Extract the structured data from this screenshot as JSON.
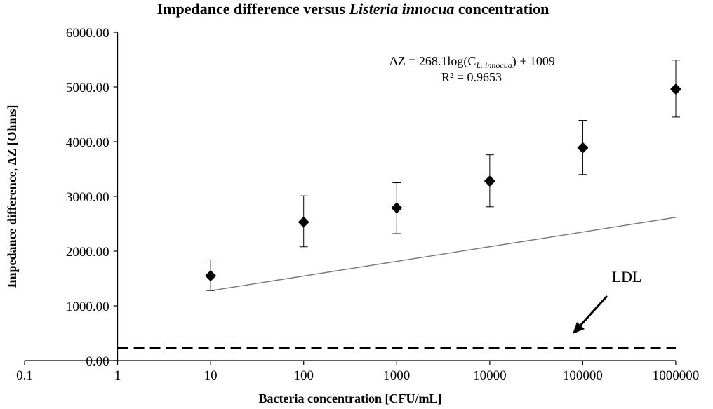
{
  "chart_data": {
    "type": "scatter",
    "title_parts": [
      "Impedance difference versus ",
      "Listeria innocua",
      " concentration"
    ],
    "xlabel": "Bacteria concentration [CFU/mL]",
    "ylabel": "Impedance difference, ΔZ [Ohms]",
    "x_scale": "log",
    "xlim": [
      0.1,
      1000000
    ],
    "ylim": [
      0,
      6000
    ],
    "x_ticks": [
      0.1,
      1,
      10,
      100,
      1000,
      10000,
      100000,
      1000000
    ],
    "x_tick_labels": [
      "0.1",
      "1",
      "10",
      "100",
      "1000",
      "10000",
      "100000",
      "1000000"
    ],
    "y_ticks": [
      0,
      1000,
      2000,
      3000,
      4000,
      5000,
      6000
    ],
    "y_tick_labels": [
      "0.00",
      "1000.00",
      "2000.00",
      "3000.00",
      "4000.00",
      "5000.00",
      "6000.00"
    ],
    "grid": false,
    "series": [
      {
        "x": [
          10,
          100,
          1000,
          10000,
          100000,
          1000000
        ],
        "y": [
          1550,
          2530,
          2790,
          3280,
          3890,
          4960
        ],
        "y_err_upper": [
          290,
          480,
          460,
          480,
          500,
          530
        ],
        "y_err_lower": [
          270,
          450,
          470,
          470,
          490,
          510
        ],
        "marker": "diamond",
        "color": "#000000"
      }
    ],
    "trendline": {
      "kind": "logarithmic",
      "slope": 268.1,
      "intercept": 1009,
      "x_range": [
        10,
        1000000
      ],
      "color": "#777777"
    },
    "equation_label": {
      "prefix": "ΔZ = 268.1log(C",
      "subscript": "L. innocua",
      "suffix": ") + 1009"
    },
    "r2_label": "R² = 0.9653",
    "ldl": {
      "label": "LDL",
      "value": 230
    }
  }
}
